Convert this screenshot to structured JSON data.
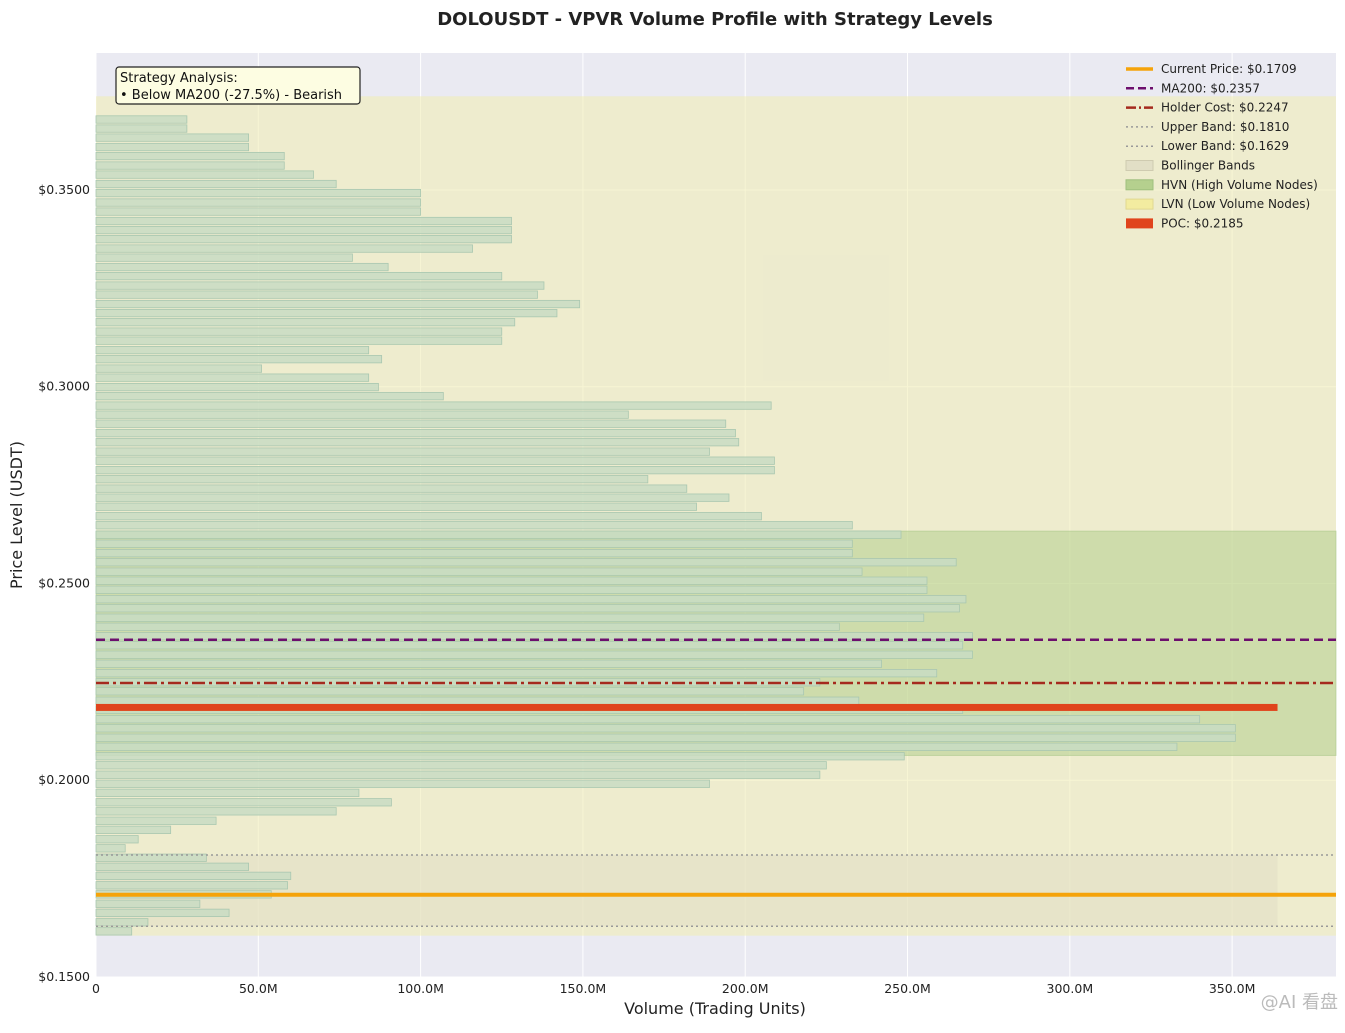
{
  "chart_data": {
    "type": "bar",
    "orientation": "horizontal",
    "title": "DOLOUSDT - VPVR Volume Profile with Strategy Levels",
    "xlabel": "Volume (Trading Units)",
    "ylabel": "Price Level (USDT)",
    "xlim": [
      0,
      382000000
    ],
    "ylim": [
      0.15,
      0.3848
    ],
    "x_ticks": [
      {
        "value": 0,
        "label": "0"
      },
      {
        "value": 50000000,
        "label": "50.0M"
      },
      {
        "value": 100000000,
        "label": "100.0M"
      },
      {
        "value": 150000000,
        "label": "150.0M"
      },
      {
        "value": 200000000,
        "label": "200.0M"
      },
      {
        "value": 250000000,
        "label": "250.0M"
      },
      {
        "value": 300000000,
        "label": "300.0M"
      },
      {
        "value": 350000000,
        "label": "350.0M"
      }
    ],
    "y_ticks": [
      {
        "value": 0.15,
        "label": "$0.1500"
      },
      {
        "value": 0.2,
        "label": "$0.2000"
      },
      {
        "value": 0.25,
        "label": "$0.2500"
      },
      {
        "value": 0.3,
        "label": "$0.3000"
      },
      {
        "value": 0.35,
        "label": "$0.3500"
      }
    ],
    "grid": true,
    "legend_position": "top-right",
    "price_levels": [
      0.1616,
      0.1639,
      0.1663,
      0.1686,
      0.171,
      0.1733,
      0.1757,
      0.178,
      0.1803,
      0.1827,
      0.185,
      0.1874,
      0.1897,
      0.1921,
      0.1944,
      0.1968,
      0.1991,
      0.2014,
      0.2038,
      0.2061,
      0.2085,
      0.2108,
      0.2132,
      0.2155,
      0.2179,
      0.2202,
      0.2226,
      0.2249,
      0.2272,
      0.2296,
      0.2319,
      0.2343,
      0.2366,
      0.239,
      0.2413,
      0.2437,
      0.246,
      0.2484,
      0.2507,
      0.253,
      0.2554,
      0.2577,
      0.2601,
      0.2624,
      0.2648,
      0.2671,
      0.2695,
      0.2718,
      0.2741,
      0.2765,
      0.2788,
      0.2812,
      0.2835,
      0.2859,
      0.2882,
      0.2906,
      0.2929,
      0.2952,
      0.2976,
      0.2999,
      0.3023,
      0.3046,
      0.307,
      0.3093,
      0.3117,
      0.314,
      0.3164,
      0.3187,
      0.321,
      0.3234,
      0.3257,
      0.3281,
      0.3304,
      0.3328,
      0.3351,
      0.3375,
      0.3398,
      0.3421,
      0.3445,
      0.3468,
      0.3492,
      0.3515,
      0.3539,
      0.3562,
      0.3586,
      0.3609,
      0.3633,
      0.3656,
      0.3679,
      0.3703,
      0.3726
    ],
    "volumes": [
      11000000,
      16000000,
      41000000,
      32000000,
      54000000,
      59000000,
      60000000,
      47000000,
      34000000,
      9000000,
      13000000,
      23000000,
      37000000,
      74000000,
      91000000,
      81000000,
      189000000,
      223000000,
      225000000,
      249000000,
      333000000,
      351000000,
      351000000,
      340000000,
      267000000,
      235000000,
      218000000,
      223000000,
      259000000,
      242000000,
      270000000,
      267000000,
      270000000,
      229000000,
      255000000,
      266000000,
      268000000,
      256000000,
      256000000,
      236000000,
      265000000,
      233000000,
      233000000,
      248000000,
      233000000,
      205000000,
      185000000,
      195000000,
      182000000,
      170000000,
      209000000,
      209000000,
      189000000,
      198000000,
      197000000,
      194000000,
      164000000,
      208000000,
      107000000,
      87000000,
      84000000,
      51000000,
      88000000,
      84000000,
      125000000,
      125000000,
      129000000,
      142000000,
      149000000,
      136000000,
      138000000,
      125000000,
      90000000,
      79000000,
      116000000,
      128000000,
      128000000,
      128000000,
      100000000,
      100000000,
      100000000,
      74000000,
      67000000,
      58000000,
      58000000,
      47000000,
      47000000,
      28000000,
      28000000,
      0,
      0
    ],
    "current_price": 0.1709,
    "ma200": 0.2357,
    "holder_cost": 0.2247,
    "upper_band": 0.181,
    "lower_band": 0.1629,
    "poc": 0.2185,
    "hvn_range": [
      0.2063,
      0.2633
    ],
    "lvn_range": [
      0.1605,
      0.3738
    ],
    "bollinger_range": [
      0.1629,
      0.181
    ],
    "legend": [
      {
        "key": "current",
        "label": "Current Price: $0.1709"
      },
      {
        "key": "ma200",
        "label": "MA200: $0.2357"
      },
      {
        "key": "holder",
        "label": "Holder Cost: $0.2247"
      },
      {
        "key": "upper",
        "label": "Upper Band: $0.1810"
      },
      {
        "key": "lower",
        "label": "Lower Band: $0.1629"
      },
      {
        "key": "bollinger",
        "label": "Bollinger Bands"
      },
      {
        "key": "hvn",
        "label": "HVN (High Volume Nodes)"
      },
      {
        "key": "lvn",
        "label": "LVN (Low Volume Nodes)"
      },
      {
        "key": "poc",
        "label": "POC: $0.2185"
      }
    ],
    "annotation": {
      "title": "Strategy Analysis:",
      "line": "• Below MA200 (-27.5%) - Bearish"
    },
    "colors": {
      "background": "#eaeaf2",
      "grid": "#ffffff",
      "bar_fill": "#c8dcc3",
      "bar_edge": "#a9c7b0",
      "hvn": "#b5d08e",
      "lvn": "#f0ecb0",
      "bollinger": "#e2dfc6",
      "current": "#f5a30a",
      "ma200": "#6d0f6d",
      "holder": "#a52a1e",
      "band": "#999999",
      "poc": "#e0441c"
    }
  },
  "watermark": "@AI 看盘"
}
